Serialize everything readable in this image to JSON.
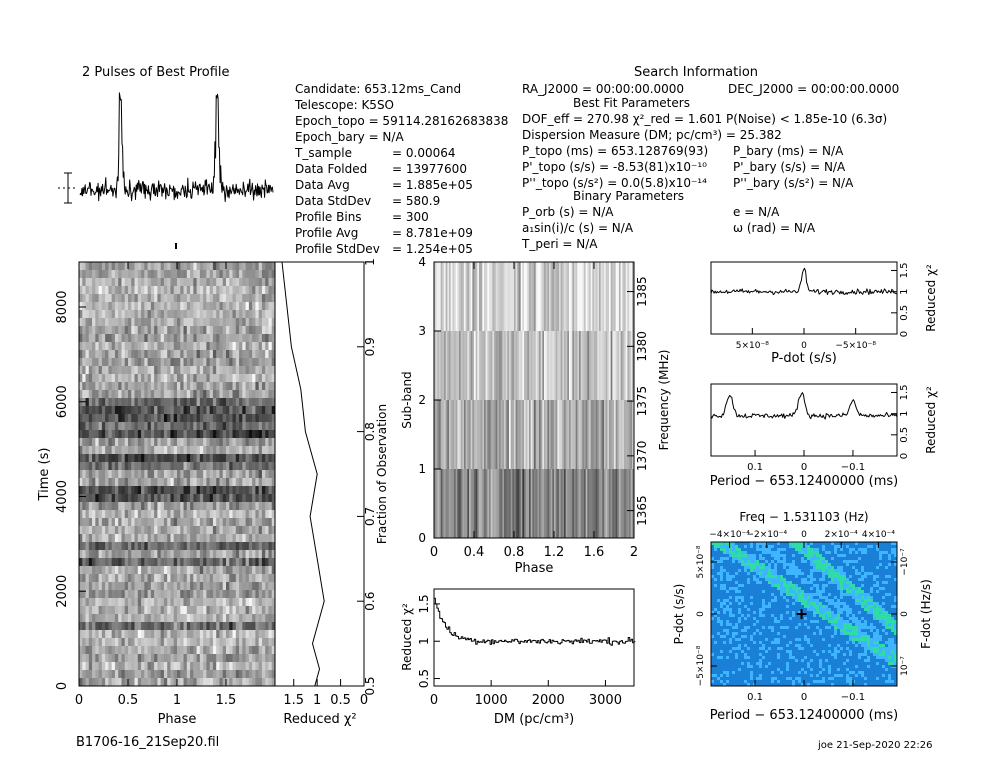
{
  "page": {
    "filename": "B1706-16_21Sep20.fil",
    "user_stamp": "joe 21-Sep-2020 22:26"
  },
  "header": {
    "profile_title": "2 Pulses of Best Profile",
    "search_title": "Search Information",
    "best_fit_title": "Best Fit Parameters",
    "binary_title": "Binary Parameters"
  },
  "info_left": [
    {
      "label": "Candidate:  653.12ms_Cand",
      "value": ""
    },
    {
      "label": "Telescope:  K5SO",
      "value": ""
    },
    {
      "label": "Epoch_topo = 59114.28162683838",
      "value": ""
    },
    {
      "label": "Epoch_bary = N/A",
      "value": ""
    },
    {
      "label": "T_sample",
      "value": "=   0.00064"
    },
    {
      "label": "Data Folded",
      "value": "=   13977600"
    },
    {
      "label": "Data Avg",
      "value": "=   1.885e+05"
    },
    {
      "label": "Data StdDev",
      "value": "=   580.9"
    },
    {
      "label": "Profile Bins",
      "value": "=   300"
    },
    {
      "label": "Profile Avg",
      "value": "=   8.781e+09"
    },
    {
      "label": "Profile StdDev",
      "value": "=   1.254e+05"
    }
  ],
  "info_right": {
    "ra": "RA_J2000 = 00:00:00.0000",
    "dec": "DEC_J2000 = 00:00:00.0000",
    "dof": "DOF_eff = 270.98  χ²_red = 1.601  P(Noise) < 1.85e-10  (6.3σ)",
    "dm": "Dispersion Measure (DM; pc/cm³) = 25.382",
    "p_topo": "P_topo (ms)  =  653.128769(93)",
    "p_bary": "P_bary (ms) = N/A",
    "pd_topo": "P'_topo (s/s) = -8.53(81)x10⁻¹⁰",
    "pd_bary": "P'_bary (s/s) = N/A",
    "pdd_topo": "P''_topo (s/s²) = 0.0(5.8)x10⁻¹⁴",
    "pdd_bary": "P''_bary (s/s²) = N/A",
    "p_orb": "P_orb (s) = N/A",
    "e": "e = N/A",
    "a1": "a₁sin(i)/c (s) = N/A",
    "omega": "ω (rad) = N/A",
    "t_peri": "T_peri = N/A"
  },
  "chart_data": [
    {
      "type": "line",
      "name": "profile",
      "title": "2 Pulses of Best Profile",
      "x_range": [
        0,
        2
      ],
      "pulse_phases": [
        0.42,
        1.42
      ]
    },
    {
      "type": "heatmap",
      "name": "time-phase",
      "xlabel": "Phase",
      "ylabel": "Time (s)",
      "x_ticks": [
        "0",
        "0.5",
        "1",
        "1.5"
      ],
      "y_ticks": [
        "0",
        "2000",
        "4000",
        "6000",
        "8000"
      ],
      "xlim": [
        0,
        2
      ],
      "ylim": [
        0,
        8950
      ]
    },
    {
      "type": "line",
      "name": "chi-vs-time",
      "xlabel": "Reduced χ²",
      "ylabel_right": "Fraction of Observation",
      "x_ticks": [
        "1.5",
        "1",
        "0.5",
        "0"
      ],
      "y_ticks_right": [
        "0.5",
        "0.6",
        "0.7",
        "0.8",
        "0.9",
        "1"
      ],
      "xlim": [
        1.9,
        0
      ],
      "ylim": [
        0.5,
        1.0
      ],
      "fraction": [
        0.5,
        0.52,
        0.55,
        0.6,
        0.65,
        0.7,
        0.75,
        0.8,
        0.85,
        0.9,
        0.95,
        1.0
      ],
      "chi": [
        1.05,
        0.95,
        1.1,
        0.85,
        1.0,
        1.15,
        1.0,
        1.25,
        1.35,
        1.55,
        1.65,
        1.75
      ]
    },
    {
      "type": "heatmap",
      "name": "subband-phase",
      "xlabel": "Phase",
      "ylabel": "Sub-band",
      "ylabel_right": "Frequency (MHz)",
      "x_ticks": [
        "0",
        "0.4",
        "0.8",
        "1.2",
        "1.6",
        "2"
      ],
      "y_ticks": [
        "0",
        "1",
        "2",
        "3",
        "4"
      ],
      "freq_ticks": [
        "1365",
        "1370",
        "1375",
        "1380",
        "1385"
      ],
      "xlim": [
        0,
        2
      ],
      "ylim": [
        0,
        4
      ],
      "freq_range": [
        1362.5,
        1387.7
      ]
    },
    {
      "type": "line",
      "name": "chi-vs-dm",
      "xlabel": "DM (pc/cm³)",
      "ylabel": "Reduced χ²",
      "x_ticks": [
        "0",
        "1000",
        "2000",
        "3000"
      ],
      "y_ticks": [
        "0.5",
        "1",
        "1.5"
      ],
      "xlim": [
        0,
        3500
      ],
      "ylim": [
        0.4,
        1.7
      ],
      "peak": {
        "x": 25.382,
        "y": 1.6
      },
      "baseline": 1.0
    },
    {
      "type": "line",
      "name": "chi-vs-pdot",
      "xlabel": "P-dot (s/s)",
      "ylabel_right": "Reduced χ²",
      "x_ticks": [
        "5×10⁻⁸",
        "0",
        "−5×10⁻⁸"
      ],
      "y_ticks_right": [
        "0",
        "0.5",
        "1",
        "1.5"
      ],
      "xlim": [
        9e-08,
        -9e-08
      ],
      "ylim": [
        0,
        1.7
      ],
      "peak": {
        "x": 0,
        "y": 1.55
      },
      "baseline": 1.0
    },
    {
      "type": "line",
      "name": "chi-vs-period",
      "xlabel": "Period − 653.12400000 (ms)",
      "ylabel_right": "Reduced χ²",
      "x_ticks": [
        "0.1",
        "0",
        "−0.1"
      ],
      "y_ticks_right": [
        "0",
        "0.5",
        "1",
        "1.5"
      ],
      "xlim": [
        0.19,
        -0.19
      ],
      "ylim": [
        0,
        1.7
      ],
      "peaks": [
        {
          "x": 0.152,
          "y": 1.45
        },
        {
          "x": 0.005,
          "y": 1.5
        },
        {
          "x": -0.1,
          "y": 1.3
        }
      ],
      "baseline": 0.95
    },
    {
      "type": "heatmap",
      "name": "pdot-period",
      "title": "Freq − 1.531103 (Hz)",
      "xlabel": "Period − 653.12400000 (ms)",
      "ylabel": "P-dot (s/s)",
      "ylabel_right": "F-dot (Hz/s)",
      "x_ticks": [
        "0.1",
        "0",
        "−0.1"
      ],
      "top_ticks": [
        "−4×10⁻⁴",
        "−2×10⁻⁴",
        "0",
        "2×10⁻⁴",
        "4×10⁻⁴"
      ],
      "y_ticks": [
        "5×10⁻⁸",
        "0",
        "−5×10⁻⁸"
      ],
      "right_ticks": [
        "−10⁻⁷",
        "0",
        "10⁻⁷"
      ],
      "best": {
        "period": 0.005,
        "pdot": 0
      },
      "colors": [
        "#1a7fd6",
        "#3fb5ff",
        "#2fdca7",
        "#19e07a"
      ]
    }
  ]
}
